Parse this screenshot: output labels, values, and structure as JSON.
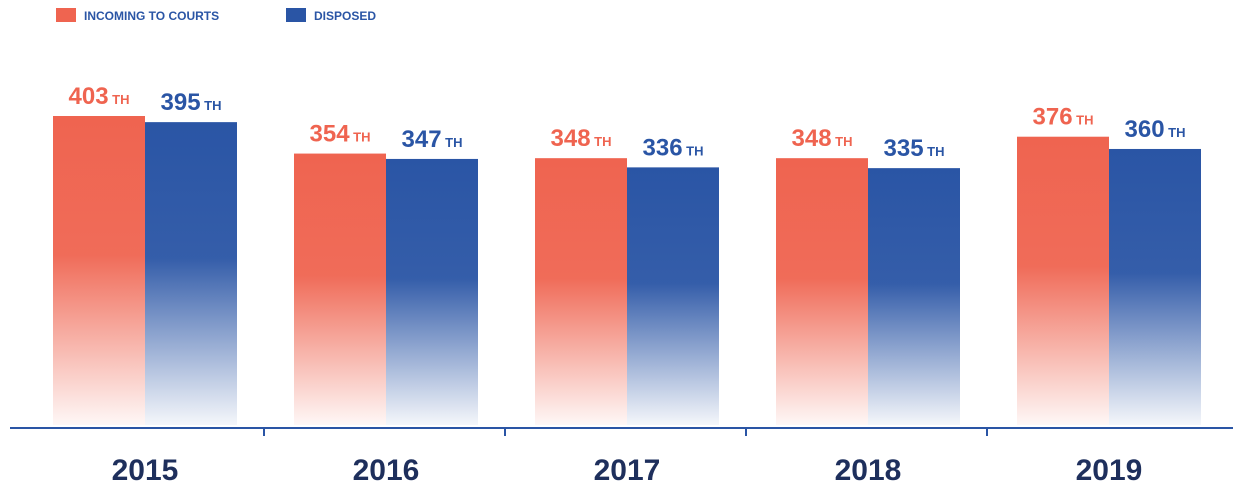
{
  "chart_data": {
    "type": "bar",
    "categories": [
      "2015",
      "2016",
      "2017",
      "2018",
      "2019"
    ],
    "series": [
      {
        "name": "INCOMING TO COURTS",
        "color": "#ef6450",
        "values": [
          403,
          354,
          348,
          348,
          376
        ],
        "value_labels": [
          "403 TH",
          "354 TH",
          "348 TH",
          "348 TH",
          "376 TH"
        ]
      },
      {
        "name": "DISPOSED",
        "color": "#2a55a5",
        "values": [
          395,
          347,
          336,
          335,
          360
        ],
        "value_labels": [
          "395 TH",
          "347 TH",
          "336 TH",
          "335 TH",
          "360 TH"
        ]
      }
    ]
  }
}
